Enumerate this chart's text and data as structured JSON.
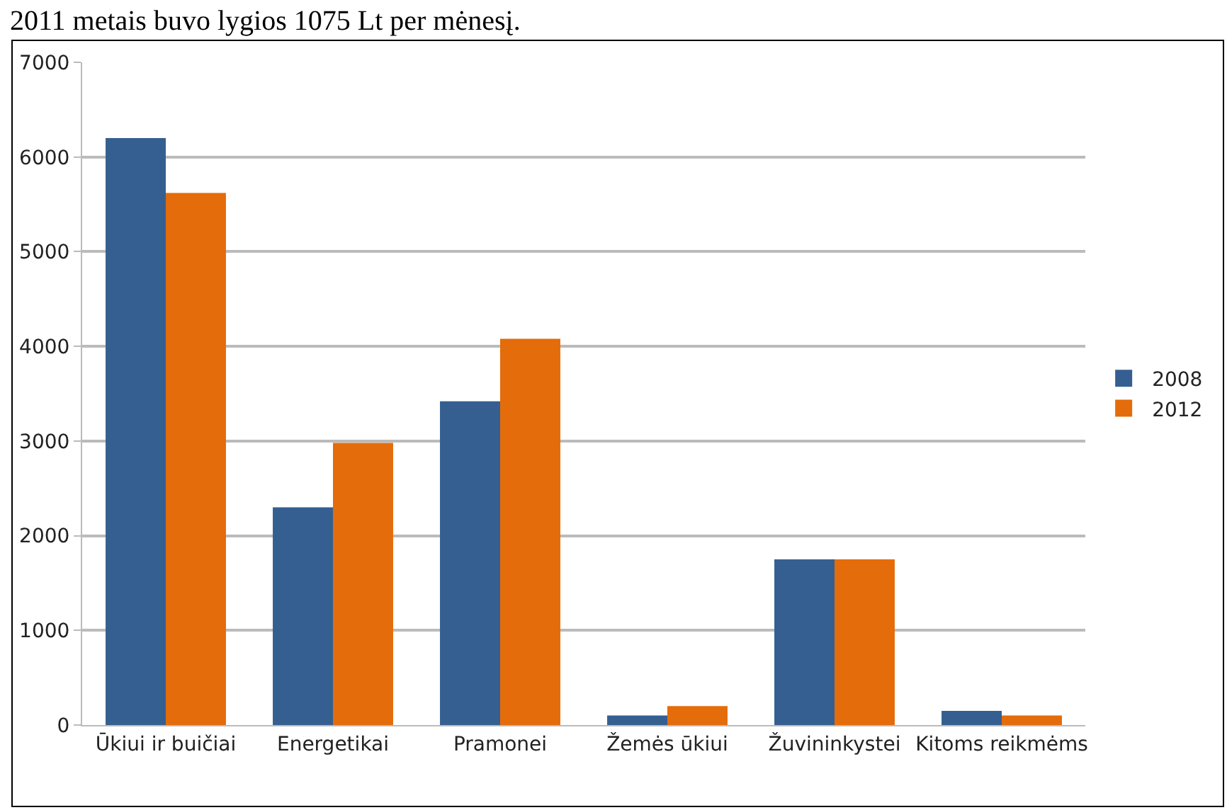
{
  "chart_data": {
    "type": "bar",
    "annotations": [
      "2011 metais buvo lygios 1075 Lt per mėnesį."
    ],
    "categories": [
      "Ūkiui ir buičiai",
      "Energetikai",
      "Pramonei",
      "Žemės ūkiui",
      "Žuvininkystei",
      "Kitoms reikmėms"
    ],
    "series": [
      {
        "name": "2008",
        "color": "#355f91",
        "values": [
          6200,
          2300,
          3420,
          100,
          1750,
          150
        ]
      },
      {
        "name": "2012",
        "color": "#e46c0a",
        "values": [
          5620,
          2980,
          4080,
          200,
          1750,
          100
        ]
      }
    ],
    "ylim": [
      0,
      7000
    ],
    "yticks": [
      0,
      1000,
      2000,
      3000,
      4000,
      5000,
      6000,
      7000
    ],
    "grid": "y",
    "legend": "right"
  }
}
